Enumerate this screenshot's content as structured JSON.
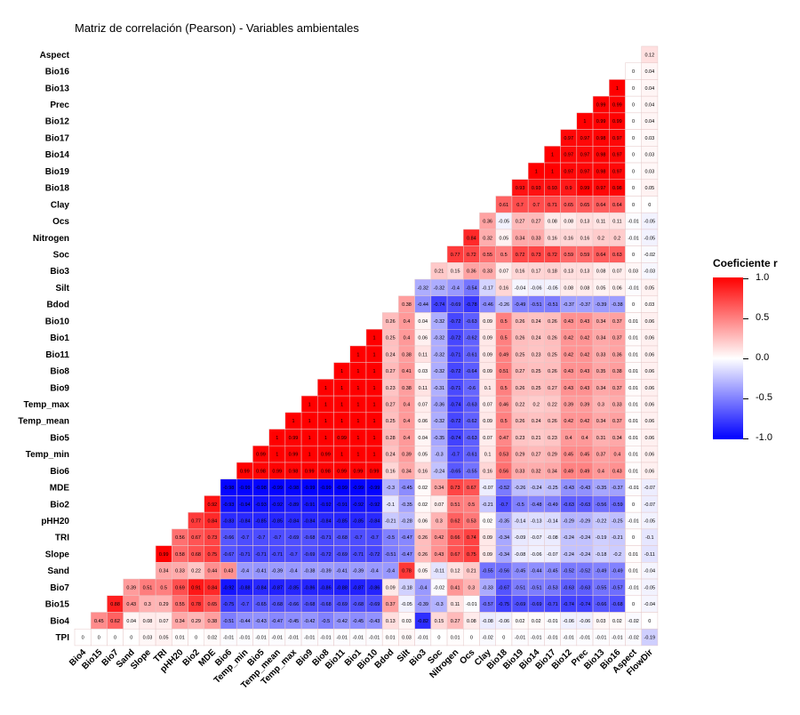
{
  "chart_data": {
    "type": "heatmap",
    "title": "Matriz de correlación (Pearson) - Variables ambientales",
    "legend": {
      "title": "Coeficiente r",
      "placement": "right",
      "ticks": [
        "1.0",
        "0.5",
        "0.0",
        "-0.5",
        "-1.0"
      ],
      "range": [
        -1,
        1
      ],
      "colors": {
        "high": "#ff0000",
        "mid": "#ffffff",
        "low": "#0000ff"
      }
    },
    "rows": [
      "Aspect",
      "Bio16",
      "Bio13",
      "Prec",
      "Bio12",
      "Bio17",
      "Bio14",
      "Bio19",
      "Bio18",
      "Clay",
      "Ocs",
      "Nitrogen",
      "Soc",
      "Bio3",
      "Silt",
      "Bdod",
      "Bio10",
      "Bio1",
      "Bio11",
      "Bio8",
      "Bio9",
      "Temp_max",
      "Temp_mean",
      "Bio5",
      "Temp_min",
      "Bio6",
      "MDE",
      "Bio2",
      "pHH20",
      "TRI",
      "Slope",
      "Sand",
      "Bio7",
      "Bio15",
      "Bio4",
      "TPI"
    ],
    "columns": [
      "Bio4",
      "Bio15",
      "Bio7",
      "Sand",
      "Slope",
      "TRI",
      "pHH20",
      "Bio2",
      "MDE",
      "Bio6",
      "Temp_min",
      "Bio5",
      "Temp_mean",
      "Temp_max",
      "Bio9",
      "Bio8",
      "Bio11",
      "Bio1",
      "Bio10",
      "Bdod",
      "Silt",
      "Bio3",
      "Soc",
      "Nitrogen",
      "Ocs",
      "Clay",
      "Bio18",
      "Bio19",
      "Bio14",
      "Bio17",
      "Bio12",
      "Prec",
      "Bio13",
      "Bio16",
      "Aspect",
      "FlowDir"
    ],
    "cells": [
      [
        0.12
      ],
      [
        0,
        0.04
      ],
      [
        1,
        0,
        0.04
      ],
      [
        0.99,
        0.99,
        0,
        0.04
      ],
      [
        1,
        0.99,
        0.99,
        0,
        0.04
      ],
      [
        0.97,
        0.97,
        0.98,
        0.97,
        0,
        0.03
      ],
      [
        1,
        0.97,
        0.97,
        0.98,
        0.97,
        0,
        0.03
      ],
      [
        1,
        1,
        0.97,
        0.97,
        0.98,
        0.97,
        0,
        0.03
      ],
      [
        0.93,
        0.93,
        0.93,
        0.9,
        0.99,
        0.97,
        0.98,
        0,
        0.05
      ],
      [
        0.61,
        0.7,
        0.7,
        0.71,
        0.65,
        0.65,
        0.64,
        0.64,
        0,
        0
      ],
      [
        0.36,
        -0.05,
        0.27,
        0.27,
        0.08,
        0.08,
        0.13,
        0.11,
        0.11,
        -0.01,
        -0.05
      ],
      [
        0.84,
        0.32,
        0.05,
        0.34,
        0.33,
        0.16,
        0.16,
        0.16,
        0.2,
        0.2,
        -0.01,
        -0.05
      ],
      [
        0.77,
        0.72,
        0.55,
        0.5,
        0.72,
        0.73,
        0.72,
        0.59,
        0.59,
        0.64,
        0.63,
        0,
        -0.02
      ],
      [
        0.21,
        0.15,
        0.36,
        0.33,
        0.07,
        0.16,
        0.17,
        0.18,
        0.13,
        0.13,
        0.08,
        0.07,
        0.03,
        -0.03
      ],
      [
        -0.32,
        -0.32,
        -0.4,
        -0.54,
        -0.17,
        0.16,
        -0.04,
        -0.06,
        -0.05,
        0.08,
        0.08,
        0.05,
        0.06,
        -0.01,
        0.05
      ],
      [
        0.38,
        -0.44,
        -0.74,
        -0.69,
        -0.78,
        -0.46,
        -0.26,
        -0.49,
        -0.51,
        -0.51,
        -0.37,
        -0.37,
        -0.39,
        -0.38,
        0,
        0.03
      ],
      [
        0.26,
        0.4,
        0.04,
        -0.32,
        -0.72,
        -0.63,
        0.09,
        0.5,
        0.26,
        0.24,
        0.26,
        0.43,
        0.43,
        0.34,
        0.37,
        0.01,
        0.06
      ],
      [
        1,
        0.25,
        0.4,
        0.06,
        -0.32,
        -0.72,
        -0.62,
        0.09,
        0.5,
        0.26,
        0.24,
        0.26,
        0.42,
        0.42,
        0.34,
        0.37,
        0.01,
        0.06
      ],
      [
        1,
        1,
        0.24,
        0.38,
        0.11,
        -0.32,
        -0.71,
        -0.61,
        0.09,
        0.49,
        0.25,
        0.23,
        0.25,
        0.42,
        0.42,
        0.33,
        0.36,
        0.01,
        0.06
      ],
      [
        1,
        1,
        1,
        0.27,
        0.41,
        0.03,
        -0.32,
        -0.72,
        -0.64,
        0.09,
        0.51,
        0.27,
        0.25,
        0.26,
        0.43,
        0.43,
        0.35,
        0.38,
        0.01,
        0.06
      ],
      [
        1,
        1,
        1,
        1,
        0.23,
        0.38,
        0.11,
        -0.31,
        -0.71,
        -0.6,
        0.1,
        0.5,
        0.26,
        0.25,
        0.27,
        0.43,
        0.43,
        0.34,
        0.37,
        0.01,
        0.06
      ],
      [
        1,
        1,
        1,
        1,
        1,
        0.27,
        0.4,
        0.07,
        -0.36,
        -0.74,
        -0.63,
        0.07,
        0.46,
        0.22,
        0.2,
        0.22,
        0.39,
        0.39,
        0.3,
        0.33,
        0.01,
        0.06
      ],
      [
        1,
        1,
        1,
        1,
        1,
        1,
        0.25,
        0.4,
        0.06,
        -0.32,
        -0.72,
        -0.62,
        0.09,
        0.5,
        0.26,
        0.24,
        0.26,
        0.42,
        0.42,
        0.34,
        0.37,
        0.01,
        0.06
      ],
      [
        1,
        0.99,
        1,
        1,
        0.99,
        1,
        1,
        0.28,
        0.4,
        0.04,
        -0.35,
        -0.74,
        -0.63,
        0.07,
        0.47,
        0.23,
        0.21,
        0.23,
        0.4,
        0.4,
        0.31,
        0.34,
        0.01,
        0.06
      ],
      [
        0.99,
        1,
        0.99,
        1,
        0.99,
        1,
        1,
        1,
        0.24,
        0.39,
        0.05,
        -0.3,
        -0.7,
        -0.61,
        0.1,
        0.53,
        0.29,
        0.27,
        0.29,
        0.45,
        0.45,
        0.37,
        0.4,
        0.01,
        0.06
      ],
      [
        0.99,
        0.98,
        0.99,
        0.98,
        0.99,
        0.98,
        0.99,
        0.99,
        0.99,
        0.16,
        0.34,
        0.16,
        -0.24,
        -0.65,
        -0.55,
        0.16,
        0.56,
        0.33,
        0.32,
        0.34,
        0.49,
        0.49,
        0.4,
        0.43,
        0.01,
        0.06
      ],
      [
        -0.98,
        -0.99,
        -0.98,
        -0.99,
        -0.98,
        -0.99,
        -0.99,
        -0.99,
        -0.99,
        -0.99,
        -0.3,
        -0.45,
        0.02,
        0.34,
        0.73,
        0.67,
        -0.07,
        -0.52,
        -0.26,
        -0.24,
        -0.25,
        -0.43,
        -0.43,
        -0.35,
        -0.37,
        -0.01,
        -0.07
      ],
      [
        0.92,
        -0.93,
        -0.94,
        -0.93,
        -0.92,
        -0.89,
        -0.91,
        -0.92,
        -0.91,
        -0.92,
        -0.92,
        -0.1,
        -0.35,
        0.02,
        0.07,
        0.51,
        0.5,
        -0.21,
        -0.7,
        -0.5,
        -0.48,
        -0.49,
        -0.63,
        -0.63,
        -0.56,
        -0.59,
        0,
        -0.07
      ],
      [
        0.77,
        0.84,
        -0.83,
        -0.84,
        -0.85,
        -0.85,
        -0.84,
        -0.84,
        -0.84,
        -0.85,
        -0.85,
        -0.84,
        -0.21,
        -0.28,
        0.06,
        0.3,
        0.62,
        0.53,
        0.02,
        -0.35,
        -0.14,
        -0.13,
        -0.14,
        -0.29,
        -0.29,
        -0.22,
        -0.25,
        -0.01,
        -0.05
      ],
      [
        0.56,
        0.67,
        0.73,
        -0.66,
        -0.7,
        -0.7,
        -0.7,
        -0.69,
        -0.68,
        -0.71,
        -0.68,
        -0.7,
        -0.7,
        -0.5,
        -0.47,
        0.26,
        0.42,
        0.66,
        0.74,
        0.09,
        -0.34,
        -0.09,
        -0.07,
        -0.08,
        -0.24,
        -0.24,
        -0.19,
        -0.21,
        0,
        -0.1
      ],
      [
        0.99,
        0.58,
        0.68,
        0.75,
        -0.67,
        -0.71,
        -0.71,
        -0.71,
        -0.7,
        -0.69,
        -0.72,
        -0.69,
        -0.71,
        -0.72,
        -0.51,
        -0.47,
        0.26,
        0.43,
        0.67,
        0.75,
        0.09,
        -0.34,
        -0.08,
        -0.06,
        -0.07,
        -0.24,
        -0.24,
        -0.18,
        -0.2,
        0.01,
        -0.11
      ],
      [
        0.34,
        0.33,
        0.22,
        0.44,
        0.43,
        -0.4,
        -0.41,
        -0.39,
        -0.4,
        -0.38,
        -0.39,
        -0.41,
        -0.39,
        -0.4,
        -0.4,
        0.78,
        0.05,
        -0.11,
        0.12,
        0.21,
        -0.55,
        -0.56,
        -0.45,
        -0.44,
        -0.45,
        -0.52,
        -0.52,
        -0.49,
        -0.49,
        0.01,
        -0.04
      ],
      [
        0.39,
        0.51,
        0.5,
        0.69,
        0.91,
        0.84,
        -0.92,
        -0.88,
        -0.84,
        -0.87,
        -0.85,
        -0.86,
        -0.86,
        -0.88,
        -0.87,
        -0.86,
        0.09,
        -0.18,
        -0.4,
        -0.02,
        0.41,
        0.3,
        -0.33,
        -0.67,
        -0.51,
        -0.51,
        -0.53,
        -0.63,
        -0.63,
        -0.55,
        -0.57,
        -0.01,
        -0.05
      ],
      [
        0.88,
        0.43,
        0.3,
        0.29,
        0.55,
        0.78,
        0.65,
        -0.75,
        -0.7,
        -0.65,
        -0.68,
        -0.66,
        -0.68,
        -0.68,
        -0.69,
        -0.68,
        -0.69,
        0.37,
        -0.05,
        -0.39,
        -0.3,
        0.11,
        -0.01,
        -0.57,
        -0.75,
        -0.69,
        -0.69,
        -0.71,
        -0.74,
        -0.74,
        -0.66,
        -0.68,
        0,
        -0.04
      ],
      [
        0.45,
        0.62,
        0.04,
        0.08,
        0.07,
        0.34,
        0.29,
        0.38,
        -0.51,
        -0.44,
        -0.43,
        -0.47,
        -0.45,
        -0.42,
        -0.5,
        -0.42,
        -0.45,
        -0.43,
        0.13,
        0.03,
        -0.82,
        0.15,
        0.27,
        0.08,
        -0.08,
        -0.06,
        0.02,
        0.02,
        -0.01,
        -0.06,
        -0.06,
        0.03,
        0.02,
        -0.02,
        0
      ],
      [
        0,
        0,
        0,
        0,
        0.03,
        0.05,
        0.01,
        0,
        0.02,
        -0.01,
        -0.01,
        -0.01,
        -0.01,
        -0.01,
        -0.01,
        -0.01,
        -0.01,
        -0.01,
        -0.01,
        0.01,
        0.03,
        -0.01,
        0,
        0.01,
        0,
        -0.02,
        0,
        -0.01,
        -0.01,
        -0.01,
        -0.01,
        -0.01,
        -0.01,
        -0.01,
        -0.02,
        -0.19
      ]
    ]
  }
}
